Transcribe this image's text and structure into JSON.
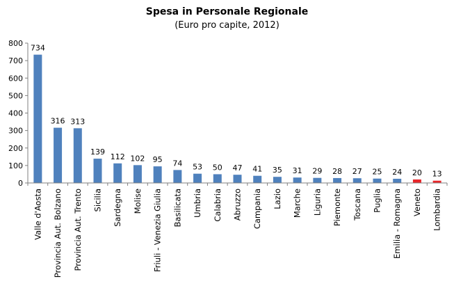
{
  "chart_data": {
    "type": "bar",
    "title": "Spesa in Personale Regionale",
    "subtitle": "(Euro pro capite, 2012)",
    "xlabel": "",
    "ylabel": "",
    "ylim": [
      0,
      800
    ],
    "yticks": [
      0,
      100,
      200,
      300,
      400,
      500,
      600,
      700,
      800
    ],
    "grid": false,
    "legend": "none",
    "categories": [
      "Valle d'Aosta",
      "Provincia Aut. Bolzano",
      "Provincia Aut. Trento",
      "Sicilia",
      "Sardegna",
      "Molise",
      "Friuli - Venezia Giulia",
      "Basilicata",
      "Umbria",
      "Calabria",
      "Abruzzo",
      "Campania",
      "Lazio",
      "Marche",
      "Liguria",
      "Piemonte",
      "Toscana",
      "Puglia",
      "Emilia - Romagna",
      "Veneto",
      "Lombardia"
    ],
    "values": [
      734,
      316,
      313,
      139,
      112,
      102,
      95,
      74,
      53,
      50,
      47,
      41,
      35,
      31,
      29,
      28,
      27,
      25,
      24,
      20,
      13
    ],
    "bar_colors": [
      "#4F81BD",
      "#4F81BD",
      "#4F81BD",
      "#4F81BD",
      "#4F81BD",
      "#4F81BD",
      "#4F81BD",
      "#4F81BD",
      "#4F81BD",
      "#4F81BD",
      "#4F81BD",
      "#4F81BD",
      "#4F81BD",
      "#4F81BD",
      "#4F81BD",
      "#4F81BD",
      "#4F81BD",
      "#4F81BD",
      "#4F81BD",
      "#E8262A",
      "#E8262A"
    ],
    "axis_color": "#7F7F7F"
  }
}
